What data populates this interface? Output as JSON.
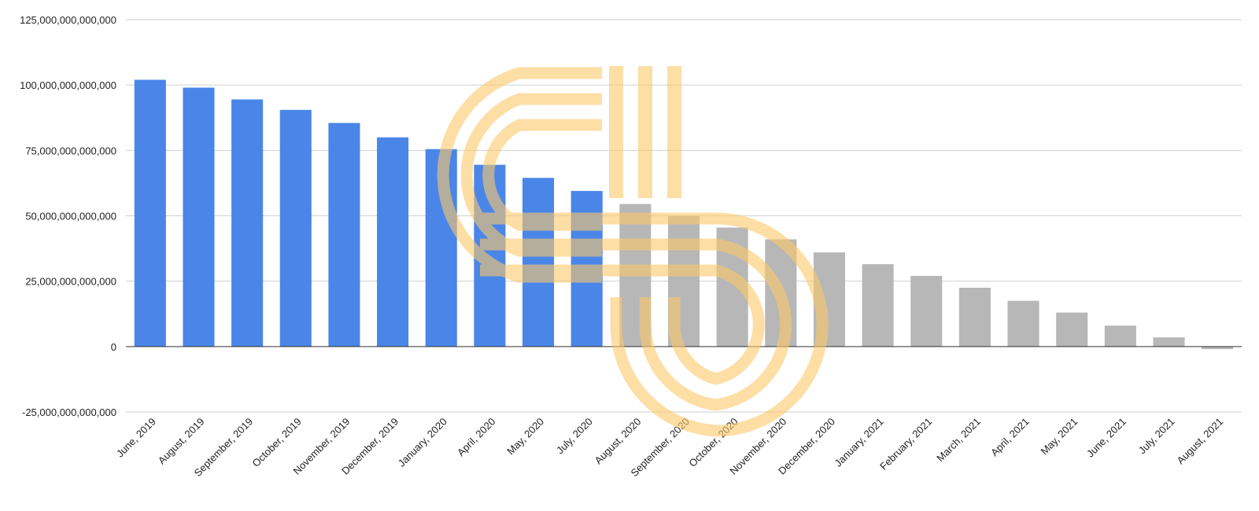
{
  "chart_data": {
    "type": "bar",
    "title": "",
    "xlabel": "",
    "ylabel": "",
    "categories": [
      "June, 2019",
      "August, 2019",
      "September, 2019",
      "October, 2019",
      "November, 2019",
      "December, 2019",
      "January, 2020",
      "April, 2020",
      "May, 2020",
      "July, 2020",
      "August, 2020",
      "September, 2020",
      "October, 2020",
      "November, 2020",
      "December, 2020",
      "January, 2021",
      "February, 2021",
      "March, 2021",
      "April, 2021",
      "May, 2021",
      "June, 2021",
      "July, 2021",
      "August, 2021"
    ],
    "values": [
      102000000000000,
      99000000000000,
      94500000000000,
      90500000000000,
      85500000000000,
      80000000000000,
      75500000000000,
      69500000000000,
      64500000000000,
      59500000000000,
      54500000000000,
      50000000000000,
      45500000000000,
      41000000000000,
      36000000000000,
      31500000000000,
      27000000000000,
      22500000000000,
      17500000000000,
      13000000000000,
      8000000000000,
      3500000000000,
      -1000000000000
    ],
    "series_colors": [
      "#4a86e8",
      "#4a86e8",
      "#4a86e8",
      "#4a86e8",
      "#4a86e8",
      "#4a86e8",
      "#4a86e8",
      "#4a86e8",
      "#4a86e8",
      "#4a86e8",
      "#b7b7b7",
      "#b7b7b7",
      "#b7b7b7",
      "#b7b7b7",
      "#b7b7b7",
      "#b7b7b7",
      "#b7b7b7",
      "#b7b7b7",
      "#b7b7b7",
      "#b7b7b7",
      "#b7b7b7",
      "#b7b7b7",
      "#b7b7b7"
    ],
    "ylim": [
      -25000000000000,
      125000000000000
    ],
    "yticks": [
      -25000000000000,
      0,
      25000000000000,
      50000000000000,
      75000000000000,
      100000000000000,
      125000000000000
    ],
    "ytick_labels": [
      "-25,000,000,000,000",
      "0",
      "25,000,000,000,000",
      "50,000,000,000,000",
      "75,000,000,000,000",
      "100,000,000,000,000",
      "125,000,000,000,000"
    ],
    "grid": true,
    "legend": "none"
  },
  "watermark": {
    "icon": "orange-concentric-logo-watermark",
    "color": "#fcc96a"
  }
}
